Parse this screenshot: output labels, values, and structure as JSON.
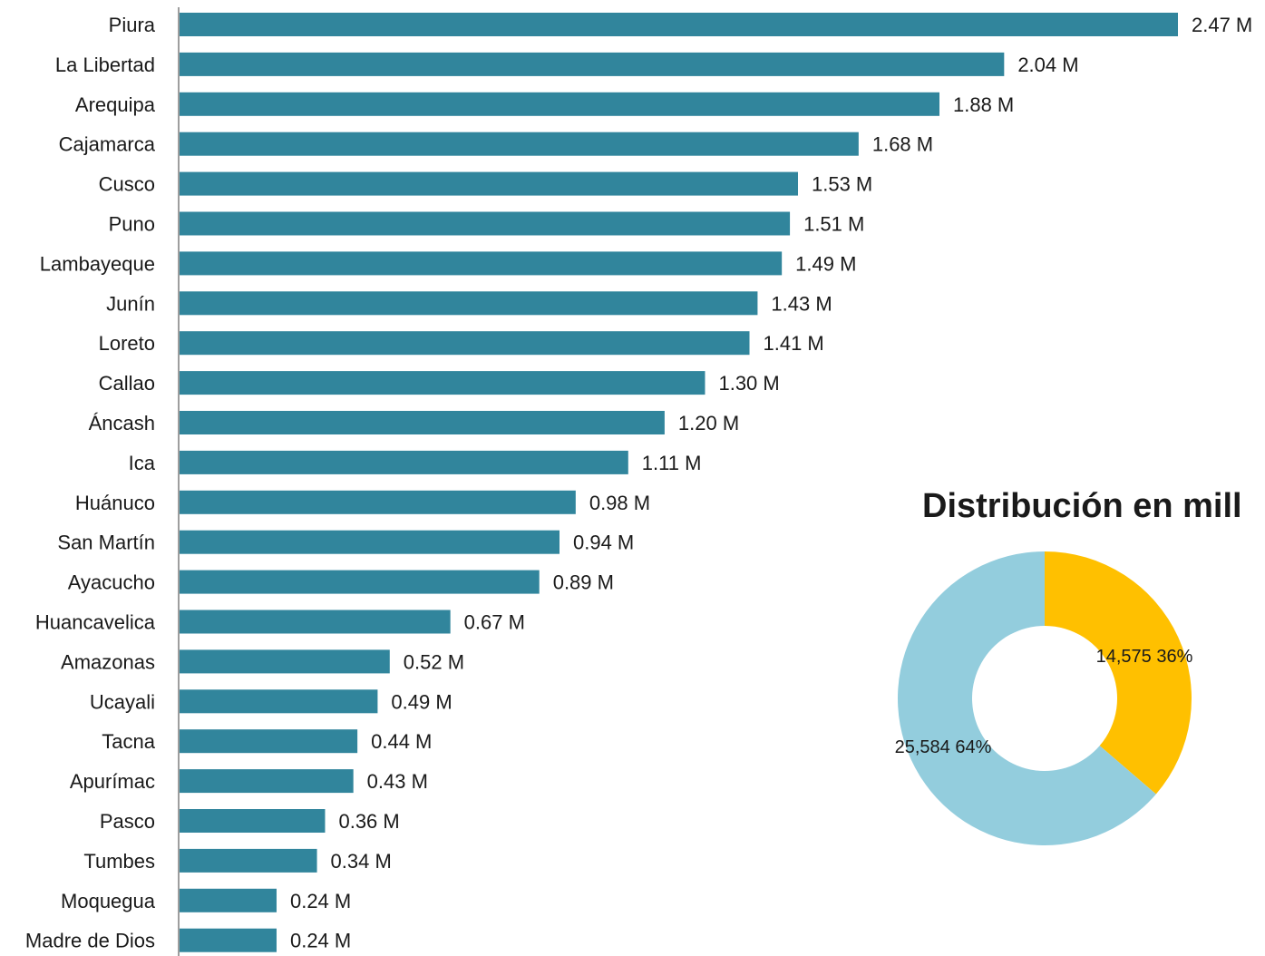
{
  "chart_data": [
    {
      "type": "bar",
      "orientation": "horizontal",
      "categories": [
        "Piura",
        "La Libertad",
        "Arequipa",
        "Cajamarca",
        "Cusco",
        "Puno",
        "Lambayeque",
        "Junín",
        "Loreto",
        "Callao",
        "Áncash",
        "Ica",
        "Huánuco",
        "San Martín",
        "Ayacucho",
        "Huancavelica",
        "Amazonas",
        "Ucayali",
        "Tacna",
        "Apurímac",
        "Pasco",
        "Tumbes ",
        "Moquegua",
        "Madre de Dios"
      ],
      "values": [
        2.47,
        2.04,
        1.88,
        1.68,
        1.53,
        1.51,
        1.49,
        1.43,
        1.41,
        1.3,
        1.2,
        1.11,
        0.98,
        0.94,
        0.89,
        0.67,
        0.52,
        0.49,
        0.44,
        0.43,
        0.36,
        0.34,
        0.24,
        0.24
      ],
      "data_labels": [
        "2.47 M",
        "2.04 M",
        "1.88 M",
        "1.68 M",
        "1.53 M",
        "1.51 M",
        "1.49 M",
        "1.43 M",
        "1.41 M",
        "1.30 M",
        "1.20 M",
        "1.11 M",
        "0.98 M",
        "0.94 M",
        "0.89 M",
        "0.67 M",
        "0.52 M",
        "0.49 M",
        "0.44 M",
        "0.43 M",
        "0.36 M",
        "0.34 M",
        "0.24 M",
        "0.24 M"
      ],
      "xlim": [
        0,
        2.47
      ],
      "grid": false,
      "bar_color": "#31859c"
    },
    {
      "type": "pie",
      "variant": "donut",
      "title": "Distribución en mill",
      "slices": [
        {
          "value": 14575,
          "percent": 36,
          "label": "14,575 36%",
          "color": "#ffc000"
        },
        {
          "value": 25584,
          "percent": 64,
          "label": "25,584 64%",
          "color": "#93cddd"
        }
      ]
    }
  ],
  "colors": {
    "bar": "#31859c",
    "axis": "#7f7f7f",
    "donut_gold": "#ffc000",
    "donut_blue": "#93cddd"
  }
}
